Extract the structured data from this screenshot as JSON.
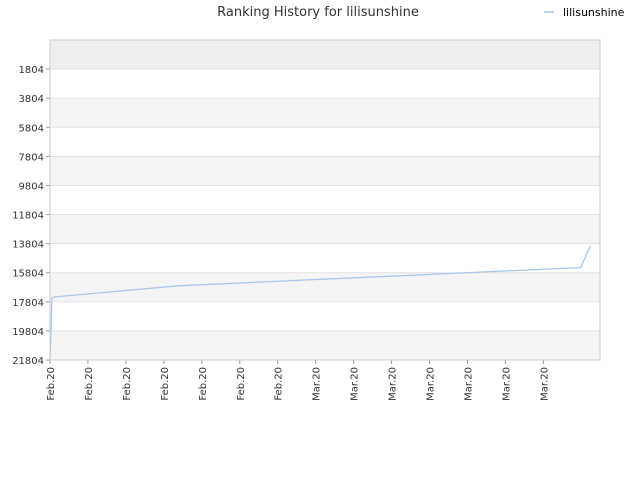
{
  "chart_data": {
    "type": "line",
    "title": "Ranking History for lilisunshine",
    "legend_position": "top-right",
    "grid": true,
    "y_inverted": true,
    "ylim": [
      -196,
      21804
    ],
    "y_ticks": [
      1804,
      3804,
      5804,
      7804,
      9804,
      11804,
      13804,
      15804,
      17804,
      19804,
      21804
    ],
    "x_tick_labels": [
      "Feb.20",
      "Feb.20",
      "Feb.20",
      "Feb.20",
      "Feb.20",
      "Feb.20",
      "Feb.20",
      "Mar.20",
      "Mar.20",
      "Mar.20",
      "Mar.20",
      "Mar.20",
      "Mar.20",
      "Mar.20"
    ],
    "x_tick_positions": [
      0.0,
      2.36,
      4.72,
      7.08,
      9.44,
      11.8,
      14.16,
      16.52,
      18.88,
      21.24,
      23.6,
      25.96,
      28.32,
      30.68
    ],
    "xlim": [
      0,
      34.2
    ],
    "series": [
      {
        "name": "lilisunshine",
        "color": "#a8c8f0",
        "x": [
          0.0,
          0.05,
          0.07,
          0.1,
          0.12,
          0.15,
          0.5,
          1,
          2,
          3,
          4,
          5,
          6,
          7,
          8,
          9,
          10,
          11,
          12,
          13,
          14,
          15,
          16,
          17,
          18,
          19,
          20,
          21,
          22,
          23,
          24,
          25,
          26,
          27,
          28,
          29,
          30,
          31,
          32,
          33,
          33.6
        ],
        "values": [
          21804,
          20000,
          19804,
          18000,
          17600,
          17500,
          17450,
          17400,
          17300,
          17200,
          17100,
          17000,
          16900,
          16800,
          16700,
          16650,
          16600,
          16550,
          16500,
          16450,
          16400,
          16350,
          16300,
          16250,
          16200,
          16150,
          16100,
          16050,
          16000,
          15950,
          15900,
          15850,
          15800,
          15750,
          15700,
          15650,
          15600,
          15550,
          15500,
          15450,
          13950
        ]
      }
    ]
  }
}
